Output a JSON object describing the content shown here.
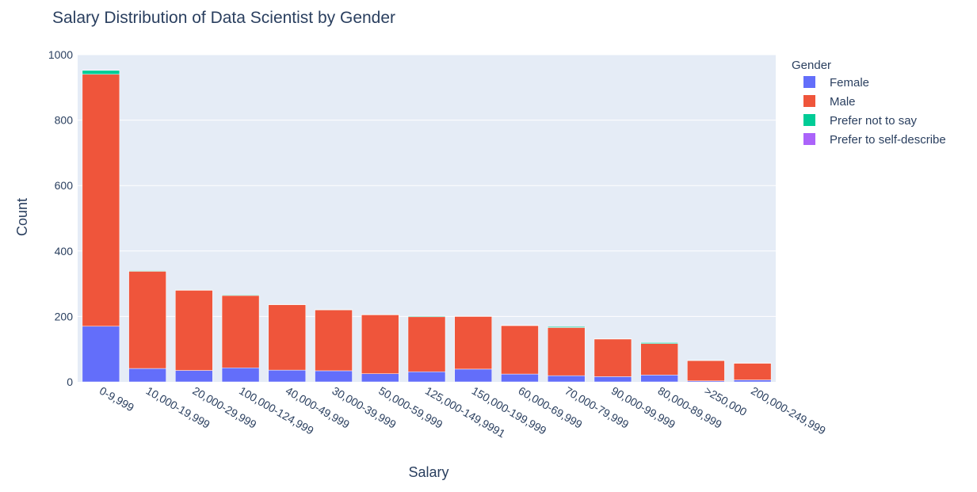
{
  "chart_data": {
    "type": "bar",
    "barmode": "stack",
    "title": "Salary Distribution of Data Scientist by Gender",
    "xlabel": "Salary",
    "ylabel": "Count",
    "ylim": [
      0,
      1000
    ],
    "yticks": [
      0,
      200,
      400,
      600,
      800,
      1000
    ],
    "grid": true,
    "legend_title": "Gender",
    "legend_position": "top-right",
    "categories": [
      "0-9,999",
      "10,000-19,999",
      "20,000-29,999",
      "100,000-124,999",
      "40,000-49,999",
      "30,000-39,999",
      "50,000-59,999",
      "125,000-149,9991",
      "150,000-199,999",
      "60,000-69,999",
      "70,000-79,999",
      "90,000-99,999",
      "80,000-89,999",
      ">250,000",
      "200,000-249,999"
    ],
    "series": [
      {
        "name": "Female",
        "color": "#636efa",
        "values": [
          170,
          41,
          35,
          43,
          36,
          34,
          25,
          31,
          39,
          24,
          19,
          16,
          21,
          3,
          6
        ]
      },
      {
        "name": "Male",
        "color": "#ef553b",
        "values": [
          770,
          297,
          245,
          221,
          200,
          186,
          180,
          168,
          161,
          148,
          147,
          115,
          96,
          62,
          51
        ]
      },
      {
        "name": "Prefer not to say",
        "color": "#00cc96",
        "values": [
          12,
          2,
          1,
          2,
          1,
          1,
          1,
          2,
          1,
          1,
          3,
          1,
          3,
          1,
          1
        ]
      },
      {
        "name": "Prefer to self-describe",
        "color": "#ab63fa",
        "values": [
          1,
          0,
          0,
          0,
          0,
          0,
          0,
          0,
          0,
          0,
          0,
          0,
          0,
          0,
          0
        ]
      }
    ]
  }
}
